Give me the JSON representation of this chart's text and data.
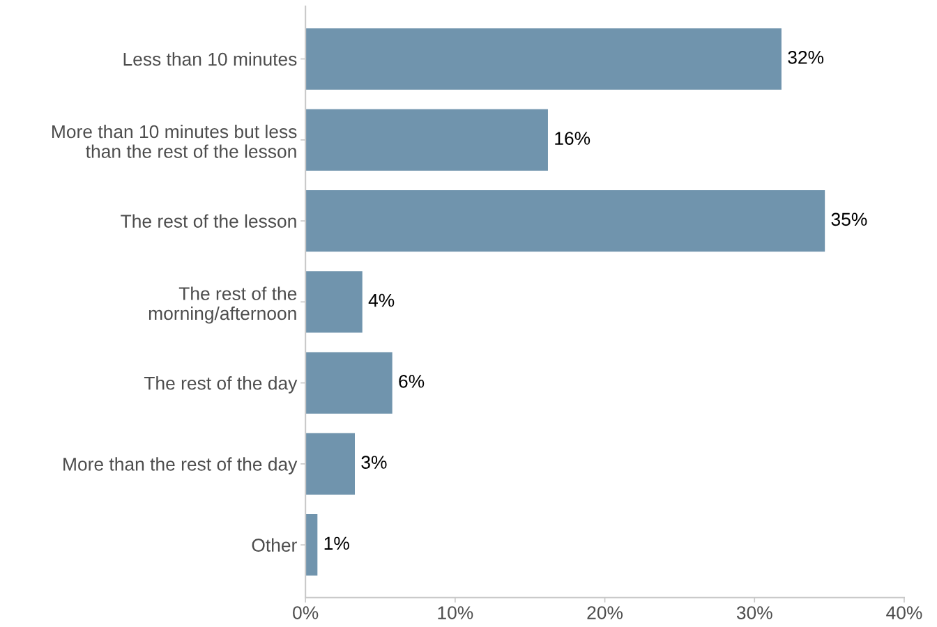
{
  "chart_data": {
    "type": "bar",
    "orientation": "horizontal",
    "categories": [
      "Less than 10 minutes",
      "More than 10 minutes but less\nthan the rest of the lesson",
      "The rest of the lesson",
      "The rest of the\nmorning/afternoon",
      "The rest of the day",
      "More than the rest of the day",
      "Other"
    ],
    "values": [
      31.8,
      16.2,
      34.7,
      3.8,
      5.8,
      3.3,
      0.8
    ],
    "value_labels": [
      "32%",
      "16%",
      "35%",
      "4%",
      "6%",
      "3%",
      "1%"
    ],
    "color": "#7094ad",
    "xlim": [
      0,
      40
    ],
    "xticks": [
      {
        "value": 0,
        "label": "0%"
      },
      {
        "value": 10,
        "label": "10%"
      },
      {
        "value": 20,
        "label": "20%"
      },
      {
        "value": 30,
        "label": "30%"
      },
      {
        "value": 40,
        "label": "40%"
      }
    ],
    "grid": false
  }
}
